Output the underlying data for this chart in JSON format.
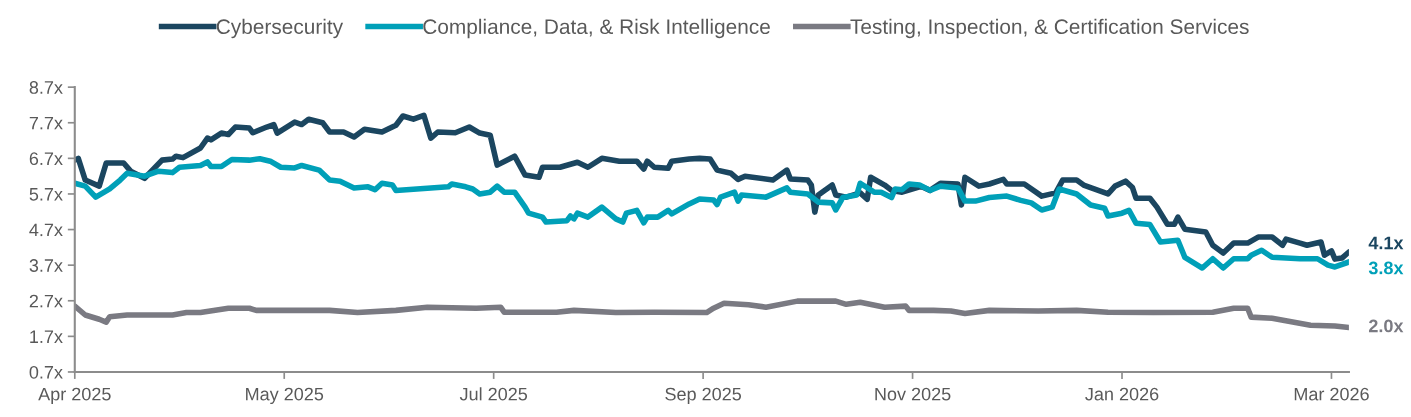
{
  "chart_data": {
    "type": "line",
    "legend": "top",
    "grid": false,
    "line_style": "solid",
    "marker": "none",
    "xlim": [
      "2025-04-01",
      "2026-04-01"
    ],
    "xticks": [
      {
        "value": "2025-04-01",
        "label": "Apr 2025"
      },
      {
        "value": "2025-05-31",
        "label": "May 2025"
      },
      {
        "value": "2025-07-30",
        "label": "Jul 2025"
      },
      {
        "value": "2025-09-28",
        "label": "Sep 2025"
      },
      {
        "value": "2025-11-27",
        "label": "Nov 2025"
      },
      {
        "value": "2026-01-26",
        "label": "Jan 2026"
      },
      {
        "value": "2026-03-27",
        "label": "Mar 2026"
      }
    ],
    "ylim": [
      0.7,
      8.7
    ],
    "yticks": [
      {
        "value": 0.7,
        "label": "0.7x"
      },
      {
        "value": 1.7,
        "label": "1.7x"
      },
      {
        "value": 2.7,
        "label": "2.7x"
      },
      {
        "value": 3.7,
        "label": "3.7x"
      },
      {
        "value": 4.7,
        "label": "4.7x"
      },
      {
        "value": 5.7,
        "label": "5.7x"
      },
      {
        "value": 6.7,
        "label": "6.7x"
      },
      {
        "value": 7.7,
        "label": "7.7x"
      },
      {
        "value": 8.7,
        "label": "8.7x"
      }
    ],
    "series": [
      {
        "name": "Cybersecurity",
        "color": "#1b4660",
        "x": [
          "2025-04-01",
          "2025-04-02",
          "2025-04-04",
          "2025-04-08",
          "2025-04-10",
          "2025-04-15",
          "2025-04-17",
          "2025-04-21",
          "2025-04-26",
          "2025-04-29",
          "2025-04-30",
          "2025-05-02",
          "2025-05-07",
          "2025-05-09",
          "2025-05-10",
          "2025-05-13",
          "2025-05-15",
          "2025-05-17",
          "2025-05-21",
          "2025-05-22",
          "2025-05-26",
          "2025-05-28",
          "2025-05-29",
          "2025-06-03",
          "2025-06-05",
          "2025-06-07",
          "2025-06-11",
          "2025-06-13",
          "2025-06-17",
          "2025-06-20",
          "2025-06-23",
          "2025-06-28",
          "2025-07-02",
          "2025-07-04",
          "2025-07-07",
          "2025-07-10",
          "2025-07-12",
          "2025-07-14",
          "2025-07-19",
          "2025-07-23",
          "2025-07-26",
          "2025-07-29",
          "2025-07-31",
          "2025-08-05",
          "2025-08-08",
          "2025-08-12",
          "2025-08-13",
          "2025-08-18",
          "2025-08-23",
          "2025-08-26",
          "2025-08-30",
          "2025-09-04",
          "2025-09-09",
          "2025-09-11",
          "2025-09-12",
          "2025-09-14",
          "2025-09-18",
          "2025-09-19",
          "2025-09-24",
          "2025-09-27",
          "2025-09-30",
          "2025-10-02",
          "2025-10-06",
          "2025-10-08",
          "2025-10-10",
          "2025-10-18",
          "2025-10-22",
          "2025-10-23",
          "2025-10-28",
          "2025-10-29",
          "2025-10-30",
          "2025-10-31",
          "2025-11-04",
          "2025-11-05",
          "2025-11-08",
          "2025-11-12",
          "2025-11-14",
          "2025-11-15",
          "2025-11-19",
          "2025-11-21",
          "2025-11-24",
          "2025-11-29",
          "2025-11-30",
          "2025-12-02",
          "2025-12-05",
          "2025-12-10",
          "2025-12-11",
          "2025-12-12",
          "2025-12-16",
          "2025-12-19",
          "2025-12-23",
          "2025-12-24",
          "2025-12-29",
          "2026-01-03",
          "2026-01-07",
          "2026-01-09",
          "2026-01-13",
          "2026-01-15",
          "2026-01-22",
          "2026-01-24",
          "2026-01-27",
          "2026-01-29",
          "2026-01-30",
          "2026-02-03",
          "2026-02-05",
          "2026-02-08",
          "2026-02-10",
          "2026-02-11",
          "2026-02-13",
          "2026-02-19",
          "2026-02-21",
          "2026-02-24",
          "2026-02-27",
          "2026-03-03",
          "2026-03-06",
          "2026-03-10",
          "2026-03-13",
          "2026-03-14",
          "2026-03-18",
          "2026-03-20",
          "2026-03-24",
          "2026-03-25",
          "2026-03-27",
          "2026-03-28",
          "2026-03-30",
          "2026-04-01"
        ],
        "values": [
          6.65,
          6.7,
          6.09,
          5.92,
          6.57,
          6.57,
          6.34,
          6.14,
          6.65,
          6.68,
          6.76,
          6.72,
          6.99,
          7.27,
          7.22,
          7.41,
          7.37,
          7.58,
          7.55,
          7.42,
          7.58,
          7.65,
          7.41,
          7.72,
          7.65,
          7.8,
          7.7,
          7.44,
          7.44,
          7.3,
          7.52,
          7.44,
          7.63,
          7.89,
          7.8,
          7.91,
          7.27,
          7.44,
          7.42,
          7.58,
          7.41,
          7.35,
          6.51,
          6.76,
          6.23,
          6.17,
          6.45,
          6.45,
          6.59,
          6.45,
          6.7,
          6.62,
          6.62,
          6.4,
          6.62,
          6.45,
          6.42,
          6.62,
          6.68,
          6.7,
          6.68,
          6.37,
          6.28,
          6.11,
          6.2,
          6.09,
          6.37,
          6.12,
          6.09,
          5.95,
          5.19,
          5.67,
          5.95,
          5.67,
          5.61,
          5.73,
          5.55,
          6.17,
          5.95,
          5.8,
          5.75,
          5.9,
          5.89,
          5.8,
          6.0,
          5.98,
          5.39,
          6.17,
          5.92,
          5.98,
          6.11,
          5.98,
          5.98,
          5.64,
          5.73,
          6.09,
          6.09,
          5.95,
          5.7,
          5.92,
          6.06,
          5.88,
          5.58,
          5.58,
          5.33,
          4.85,
          4.85,
          5.05,
          4.71,
          4.63,
          4.26,
          4.04,
          4.32,
          4.32,
          4.49,
          4.49,
          4.26,
          4.43,
          4.32,
          4.26,
          4.35,
          3.98,
          4.1,
          3.87,
          3.9,
          4.07
        ]
      },
      {
        "name": "Compliance, Data, & Risk Intelligence",
        "color": "#00a0b8",
        "x": [
          "2025-04-01",
          "2025-04-04",
          "2025-04-07",
          "2025-04-11",
          "2025-04-14",
          "2025-04-16",
          "2025-04-21",
          "2025-04-25",
          "2025-04-29",
          "2025-05-01",
          "2025-05-07",
          "2025-05-09",
          "2025-05-10",
          "2025-05-13",
          "2025-05-16",
          "2025-05-21",
          "2025-05-24",
          "2025-05-27",
          "2025-05-30",
          "2025-06-03",
          "2025-06-05",
          "2025-06-10",
          "2025-06-13",
          "2025-06-16",
          "2025-06-20",
          "2025-06-24",
          "2025-06-26",
          "2025-06-28",
          "2025-07-01",
          "2025-07-02",
          "2025-07-08",
          "2025-07-17",
          "2025-07-18",
          "2025-07-22",
          "2025-07-24",
          "2025-07-26",
          "2025-07-29",
          "2025-07-31",
          "2025-08-02",
          "2025-08-05",
          "2025-08-08",
          "2025-08-09",
          "2025-08-13",
          "2025-08-14",
          "2025-08-20",
          "2025-08-21",
          "2025-08-22",
          "2025-08-23",
          "2025-08-26",
          "2025-08-30",
          "2025-09-03",
          "2025-09-05",
          "2025-09-06",
          "2025-09-09",
          "2025-09-11",
          "2025-09-12",
          "2025-09-15",
          "2025-09-18",
          "2025-09-19",
          "2025-09-24",
          "2025-09-27",
          "2025-10-01",
          "2025-10-02",
          "2025-10-03",
          "2025-10-07",
          "2025-10-08",
          "2025-10-09",
          "2025-10-16",
          "2025-10-22",
          "2025-10-23",
          "2025-10-28",
          "2025-10-31",
          "2025-11-04",
          "2025-11-05",
          "2025-11-07",
          "2025-11-11",
          "2025-11-12",
          "2025-11-16",
          "2025-11-18",
          "2025-11-21",
          "2025-11-22",
          "2025-11-24",
          "2025-11-26",
          "2025-11-29",
          "2025-12-02",
          "2025-12-05",
          "2025-12-10",
          "2025-12-12",
          "2025-12-15",
          "2025-12-19",
          "2025-12-24",
          "2025-12-28",
          "2025-12-31",
          "2026-01-03",
          "2026-01-06",
          "2026-01-08",
          "2026-01-13",
          "2026-01-17",
          "2026-01-21",
          "2026-01-22",
          "2026-01-26",
          "2026-01-28",
          "2026-01-30",
          "2026-02-03",
          "2026-02-06",
          "2026-02-11",
          "2026-02-13",
          "2026-02-18",
          "2026-02-21",
          "2026-02-24",
          "2026-02-27",
          "2026-03-03",
          "2026-03-04",
          "2026-03-07",
          "2026-03-10",
          "2026-03-18",
          "2026-03-23",
          "2026-03-26",
          "2026-03-28",
          "2026-04-01"
        ],
        "values": [
          6.0,
          5.92,
          5.61,
          5.84,
          6.09,
          6.28,
          6.2,
          6.34,
          6.3,
          6.45,
          6.5,
          6.6,
          6.47,
          6.47,
          6.67,
          6.65,
          6.69,
          6.62,
          6.45,
          6.43,
          6.5,
          6.37,
          6.09,
          6.06,
          5.87,
          5.9,
          5.82,
          6.0,
          5.95,
          5.8,
          5.84,
          5.9,
          5.98,
          5.9,
          5.84,
          5.7,
          5.75,
          5.92,
          5.75,
          5.75,
          5.33,
          5.16,
          5.05,
          4.91,
          4.95,
          5.08,
          5.0,
          5.16,
          5.05,
          5.33,
          5.0,
          4.91,
          5.16,
          5.24,
          4.89,
          5.05,
          5.05,
          5.24,
          5.14,
          5.42,
          5.56,
          5.53,
          5.4,
          5.61,
          5.75,
          5.5,
          5.67,
          5.61,
          5.87,
          5.75,
          5.7,
          5.47,
          5.45,
          5.25,
          5.6,
          5.67,
          6.0,
          5.75,
          5.75,
          5.6,
          5.84,
          5.82,
          5.98,
          5.95,
          5.8,
          5.92,
          5.87,
          5.5,
          5.5,
          5.6,
          5.64,
          5.52,
          5.45,
          5.25,
          5.33,
          5.84,
          5.7,
          5.39,
          5.3,
          5.08,
          5.16,
          5.24,
          4.88,
          4.84,
          4.35,
          4.4,
          3.92,
          3.62,
          3.88,
          3.62,
          3.88,
          3.88,
          3.98,
          4.12,
          3.92,
          3.88,
          3.88,
          3.7,
          3.65,
          3.79
        ]
      },
      {
        "name": "Testing, Inspection, & Certification Services",
        "color": "#7a7a82",
        "x": [
          "2025-04-01",
          "2025-04-04",
          "2025-04-08",
          "2025-04-10",
          "2025-04-11",
          "2025-04-16",
          "2025-04-29",
          "2025-05-03",
          "2025-05-07",
          "2025-05-15",
          "2025-05-21",
          "2025-05-23",
          "2025-06-13",
          "2025-06-21",
          "2025-07-02",
          "2025-07-11",
          "2025-07-25",
          "2025-08-01",
          "2025-08-02",
          "2025-08-17",
          "2025-08-22",
          "2025-09-03",
          "2025-09-14",
          "2025-09-29",
          "2025-10-01",
          "2025-10-04",
          "2025-10-11",
          "2025-10-16",
          "2025-10-25",
          "2025-11-05",
          "2025-11-08",
          "2025-11-12",
          "2025-11-19",
          "2025-11-25",
          "2025-11-26",
          "2025-12-03",
          "2025-12-08",
          "2025-12-12",
          "2025-12-19",
          "2026-01-02",
          "2026-01-13",
          "2026-01-22",
          "2026-02-04",
          "2026-02-21",
          "2026-02-27",
          "2026-03-03",
          "2026-03-04",
          "2026-03-10",
          "2026-03-21",
          "2026-03-28",
          "2026-04-01"
        ],
        "values": [
          2.55,
          2.3,
          2.18,
          2.1,
          2.25,
          2.3,
          2.3,
          2.37,
          2.37,
          2.49,
          2.49,
          2.43,
          2.43,
          2.37,
          2.43,
          2.52,
          2.49,
          2.52,
          2.38,
          2.38,
          2.43,
          2.37,
          2.38,
          2.37,
          2.49,
          2.63,
          2.59,
          2.52,
          2.69,
          2.69,
          2.6,
          2.66,
          2.52,
          2.55,
          2.43,
          2.43,
          2.41,
          2.34,
          2.43,
          2.41,
          2.43,
          2.38,
          2.37,
          2.38,
          2.49,
          2.49,
          2.24,
          2.21,
          2.01,
          1.99,
          1.95
        ]
      }
    ],
    "annotations": [
      {
        "text": "4.1x",
        "x": "2026-04-01",
        "y": 4.07
      },
      {
        "text": "3.8x",
        "x": "2026-04-01",
        "y": 3.79
      },
      {
        "text": "2.0x",
        "x": "2026-04-01",
        "y": 1.95
      }
    ]
  }
}
